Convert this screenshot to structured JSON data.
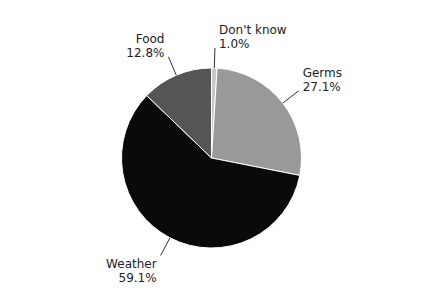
{
  "chart_data": {
    "type": "pie",
    "categories": [
      "Don't know",
      "Germs",
      "Weather",
      "Food"
    ],
    "values": [
      1.0,
      27.1,
      59.1,
      12.8
    ],
    "value_labels": [
      "1.0%",
      "27.1%",
      "59.1%",
      "12.8%"
    ],
    "colors": [
      "#c8c8c8",
      "#999999",
      "#0a0a0a",
      "#555555"
    ]
  }
}
